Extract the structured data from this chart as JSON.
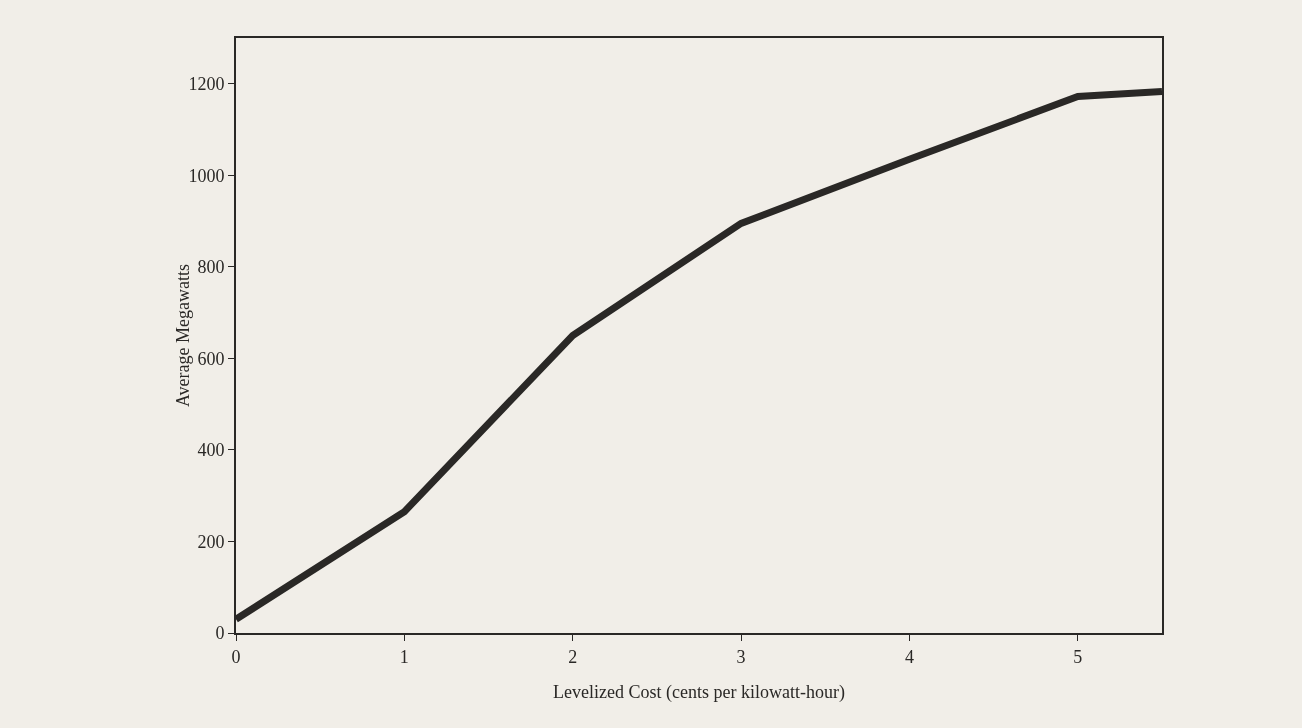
{
  "chart_data": {
    "type": "line",
    "xlabel": "Levelized Cost (cents per kilowatt-hour)",
    "ylabel": "Average Megawatts",
    "x": [
      0,
      1,
      2,
      3,
      4,
      5,
      5.5
    ],
    "series": [
      {
        "color": "#2a2826",
        "values": [
          30,
          265,
          650,
          895,
          1035,
          1172,
          1183
        ]
      }
    ],
    "xlim": [
      0,
      5.5
    ],
    "xticks": [
      0,
      1,
      2,
      3,
      4,
      5
    ],
    "ylim": [
      0,
      1300
    ],
    "yticks": [
      0,
      200,
      400,
      600,
      800,
      1000,
      1200
    ],
    "grid": false,
    "marker": "none",
    "line_style": "solid"
  }
}
